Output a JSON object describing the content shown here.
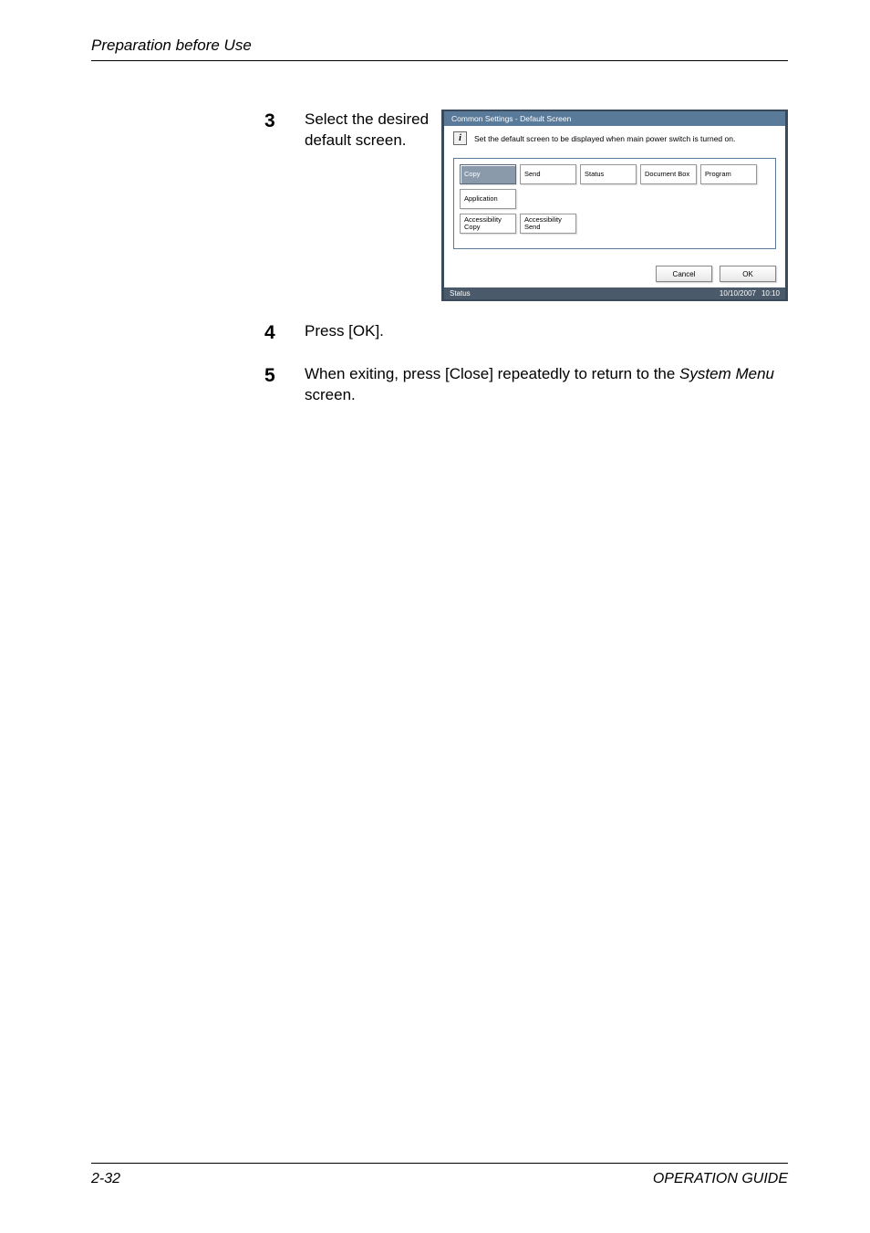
{
  "header": {
    "title": "Preparation before Use"
  },
  "steps": {
    "s3": {
      "num": "3",
      "text": "Select the desired default screen."
    },
    "s4": {
      "num": "4",
      "text": "Press [OK]."
    },
    "s5": {
      "num": "5",
      "text_a": "When exiting, press [Close] repeatedly to return to the ",
      "text_b": "System Menu",
      "text_c": " screen."
    }
  },
  "ui": {
    "title": "Common Settings - Default Screen",
    "info": "Set the default screen to be displayed when main power switch is turned on.",
    "buttons": {
      "r1": [
        {
          "label": "Copy",
          "selected": true
        },
        {
          "label": "Send"
        },
        {
          "label": "Status"
        },
        {
          "label": "Document Box"
        },
        {
          "label": "Program"
        }
      ],
      "r2": [
        {
          "label": "Application"
        }
      ],
      "r3": [
        {
          "label": "Accessibility Copy"
        },
        {
          "label": "Accessibility Send"
        }
      ]
    },
    "actions": {
      "cancel": "Cancel",
      "ok": "OK"
    },
    "status": {
      "label": "Status",
      "date": "10/10/2007",
      "time": "10:10"
    }
  },
  "footer": {
    "page": "2-32",
    "guide": "OPERATION GUIDE"
  },
  "colors": {
    "panel_border": "#3a4a5a",
    "titlebar_bg": "#5a7a9a",
    "selected_bg": "#8a9aaa",
    "statusbar_bg": "#4a5a6a"
  }
}
